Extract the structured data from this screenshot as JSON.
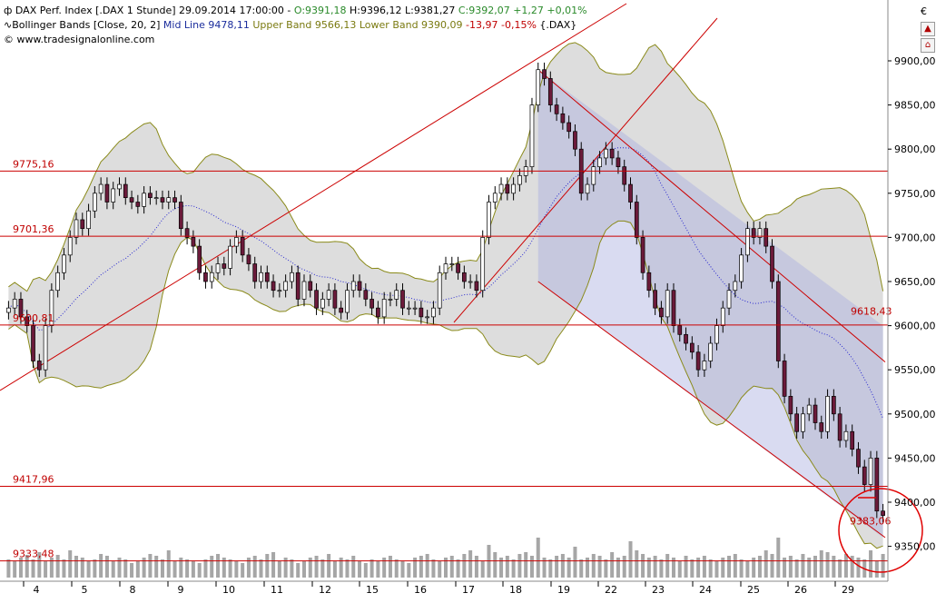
{
  "header": {
    "instrument_icon": "candlestick-icon",
    "instrument": "DAX Perf. Index [.DAX  1 Stunde] 29.09.2014 17:00:00 - ",
    "open": "O:9391,18",
    "high": "H:9396,12",
    "low": "L:9381,27",
    "close": "C:9392,07",
    "change": "+1,27 +0,01%",
    "indicator_prefix": "Bollinger Bands [Close, 20, 2]",
    "indicator_mid": "Mid Line 9478,11",
    "indicator_upper_lower": "Upper Band 9566,13 Lower Band 9390,09",
    "indicator_change": "-13,97 -0,15%",
    "indicator_symbol": "{.DAX}",
    "website": "www.tradesignalonline.com",
    "currency_symbol": "€"
  },
  "colors": {
    "up_candle": "#ffffff",
    "down_candle": "#6b1a3a",
    "band_fill": "#d9d9d9",
    "band_line": "#8a8a1a",
    "mid_line": "#2a2ad0",
    "horizontal_lines": "#cc0000",
    "channel_fill": "#aab0e0",
    "volume_bars": "#888888"
  },
  "chart_data": {
    "type": "candlestick",
    "title": "",
    "xlabel": "",
    "ylabel": "",
    "ylim": [
      9320,
      9960
    ],
    "y_ticks": [
      "9350,00",
      "9400,00",
      "9450,00",
      "9500,00",
      "9550,00",
      "9600,00",
      "9650,00",
      "9700,00",
      "9750,00",
      "9800,00",
      "9850,00",
      "9900,00"
    ],
    "y_tick_values": [
      9350,
      9400,
      9450,
      9500,
      9550,
      9600,
      9650,
      9700,
      9750,
      9800,
      9850,
      9900
    ],
    "x_ticks": [
      "4",
      "5",
      "8",
      "9",
      "10",
      "11",
      "12",
      "15",
      "16",
      "17",
      "18",
      "19",
      "22",
      "23",
      "24",
      "25",
      "26",
      "29"
    ],
    "horizontal_levels": [
      {
        "value": 9775.16,
        "label": "9775,16"
      },
      {
        "value": 9701.36,
        "label": "9701,36"
      },
      {
        "value": 9600.81,
        "label": "9600,81"
      },
      {
        "value": 9417.96,
        "label": "9417,96"
      },
      {
        "value": 9333.48,
        "label": "9333,48"
      }
    ],
    "channel_label": "9618,43",
    "channel_label_value": 9618.43,
    "last_price_label": "9383,06",
    "last_price_value": 9383.06,
    "closes": [
      9620,
      9630,
      9610,
      9600,
      9560,
      9550,
      9600,
      9640,
      9660,
      9680,
      9700,
      9720,
      9710,
      9730,
      9750,
      9760,
      9740,
      9755,
      9760,
      9745,
      9740,
      9735,
      9750,
      9745,
      9745,
      9740,
      9745,
      9740,
      9710,
      9700,
      9690,
      9660,
      9650,
      9660,
      9670,
      9665,
      9690,
      9700,
      9680,
      9670,
      9650,
      9660,
      9650,
      9640,
      9640,
      9650,
      9660,
      9630,
      9650,
      9640,
      9620,
      9630,
      9640,
      9620,
      9615,
      9640,
      9650,
      9640,
      9630,
      9620,
      9610,
      9630,
      9630,
      9640,
      9620,
      9620,
      9620,
      9610,
      9610,
      9620,
      9660,
      9670,
      9670,
      9660,
      9650,
      9650,
      9640,
      9700,
      9740,
      9750,
      9760,
      9750,
      9760,
      9770,
      9780,
      9850,
      9890,
      9880,
      9850,
      9840,
      9830,
      9820,
      9800,
      9750,
      9760,
      9780,
      9790,
      9800,
      9790,
      9780,
      9760,
      9740,
      9700,
      9660,
      9640,
      9620,
      9610,
      9640,
      9600,
      9590,
      9580,
      9570,
      9550,
      9560,
      9580,
      9600,
      9620,
      9640,
      9650,
      9680,
      9710,
      9700,
      9710,
      9690,
      9650,
      9560,
      9520,
      9500,
      9480,
      9500,
      9510,
      9490,
      9480,
      9520,
      9500,
      9470,
      9480,
      9460,
      9440,
      9420,
      9450,
      9390,
      9385
    ],
    "volumes": [
      20,
      18,
      22,
      25,
      20,
      28,
      18,
      22,
      25,
      20,
      30,
      24,
      22,
      18,
      20,
      26,
      24,
      18,
      22,
      20,
      16,
      18,
      22,
      26,
      24,
      20,
      30,
      18,
      22,
      20,
      18,
      16,
      20,
      24,
      26,
      22,
      20,
      18,
      16,
      22,
      24,
      20,
      26,
      28,
      18,
      22,
      20,
      16,
      18,
      22,
      24,
      20,
      26,
      18,
      22,
      20,
      24,
      18,
      16,
      20,
      18,
      22,
      24,
      20,
      18,
      16,
      22,
      24,
      26,
      20,
      18,
      22,
      24,
      20,
      26,
      30,
      24,
      18,
      36,
      28,
      22,
      24,
      20,
      26,
      28,
      24,
      44,
      22,
      20,
      24,
      26,
      22,
      34,
      20,
      22,
      26,
      24,
      20,
      28,
      22,
      24,
      40,
      30,
      26,
      22,
      24,
      20,
      26,
      22,
      18,
      24,
      20,
      22,
      24,
      20,
      18,
      22,
      24,
      26,
      20,
      18,
      22,
      24,
      30,
      26,
      44,
      22,
      24,
      20,
      26,
      22,
      24,
      30,
      28,
      24,
      20,
      26,
      24,
      22,
      20,
      30,
      18,
      26
    ]
  }
}
